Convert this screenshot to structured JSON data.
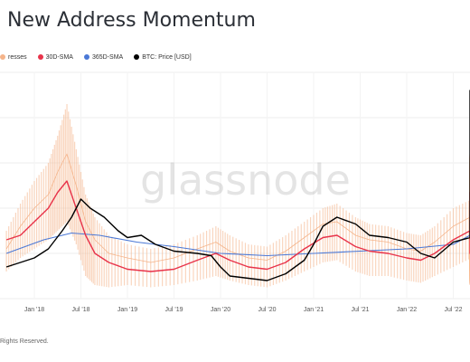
{
  "title": "New Address Momentum",
  "legend": {
    "items": [
      {
        "label": "resses",
        "color": "#f5b48a"
      },
      {
        "label": "30D-SMA",
        "color": "#e8334a"
      },
      {
        "label": "365D-SMA",
        "color": "#4a78d6"
      },
      {
        "label": "BTC: Price [USD]",
        "color": "#000000"
      }
    ]
  },
  "watermark": "glassnode",
  "footer": "Rights Reserved.",
  "chart_data": {
    "type": "line",
    "x_tick_labels": [
      "Jan '18",
      "Jul '18",
      "Jan '19",
      "Jul '19",
      "Jan '20",
      "Jul '20",
      "Jan '21",
      "Jul '21",
      "Jan '22",
      "Jul '22"
    ],
    "grid": true,
    "legend_position": "top-left",
    "series": [
      {
        "name": "BTC: Price [USD]",
        "color": "#000000",
        "points": [
          [
            -0.6,
            0.14
          ],
          [
            -0.3,
            0.16
          ],
          [
            0.0,
            0.18
          ],
          [
            0.3,
            0.22
          ],
          [
            0.6,
            0.3
          ],
          [
            0.8,
            0.36
          ],
          [
            1.0,
            0.44
          ],
          [
            1.2,
            0.4
          ],
          [
            1.5,
            0.36
          ],
          [
            1.8,
            0.3
          ],
          [
            2.0,
            0.27
          ],
          [
            2.3,
            0.28
          ],
          [
            2.6,
            0.24
          ],
          [
            3.0,
            0.21
          ],
          [
            3.5,
            0.2
          ],
          [
            3.8,
            0.19
          ],
          [
            4.0,
            0.14
          ],
          [
            4.2,
            0.1
          ],
          [
            4.6,
            0.09
          ],
          [
            5.0,
            0.08
          ],
          [
            5.4,
            0.11
          ],
          [
            5.8,
            0.17
          ],
          [
            6.0,
            0.24
          ],
          [
            6.2,
            0.32
          ],
          [
            6.5,
            0.36
          ],
          [
            6.9,
            0.33
          ],
          [
            7.2,
            0.28
          ],
          [
            7.6,
            0.27
          ],
          [
            8.0,
            0.25
          ],
          [
            8.3,
            0.2
          ],
          [
            8.6,
            0.18
          ],
          [
            9.0,
            0.25
          ],
          [
            9.4,
            0.27
          ],
          [
            9.8,
            0.3
          ],
          [
            10.2,
            0.34
          ],
          [
            10.5,
            0.4
          ],
          [
            10.8,
            0.55
          ],
          [
            11.0,
            0.62
          ],
          [
            11.2,
            0.68
          ],
          [
            11.4,
            0.74
          ],
          [
            11.7,
            0.82
          ],
          [
            12.0,
            0.88
          ],
          [
            12.3,
            0.84
          ],
          [
            12.6,
            0.86
          ],
          [
            13.0,
            0.76
          ],
          [
            13.3,
            0.7
          ],
          [
            13.6,
            0.78
          ],
          [
            14.0,
            0.82
          ],
          [
            14.3,
            0.92
          ],
          [
            14.5,
            0.89
          ],
          [
            14.8,
            0.84
          ],
          [
            15.2,
            0.8
          ],
          [
            15.6,
            0.77
          ],
          [
            16.0,
            0.7
          ],
          [
            16.3,
            0.58
          ],
          [
            16.7,
            0.55
          ],
          [
            17.0,
            0.59
          ],
          [
            17.3,
            0.56
          ]
        ]
      },
      {
        "name": "30D-SMA",
        "color": "#e8334a",
        "points": [
          [
            -0.6,
            0.26
          ],
          [
            -0.3,
            0.28
          ],
          [
            0.0,
            0.34
          ],
          [
            0.3,
            0.4
          ],
          [
            0.5,
            0.47
          ],
          [
            0.7,
            0.52
          ],
          [
            0.9,
            0.4
          ],
          [
            1.1,
            0.28
          ],
          [
            1.3,
            0.2
          ],
          [
            1.6,
            0.16
          ],
          [
            2.0,
            0.13
          ],
          [
            2.5,
            0.12
          ],
          [
            3.0,
            0.13
          ],
          [
            3.5,
            0.17
          ],
          [
            3.9,
            0.2
          ],
          [
            4.2,
            0.17
          ],
          [
            4.6,
            0.14
          ],
          [
            5.0,
            0.13
          ],
          [
            5.4,
            0.16
          ],
          [
            5.8,
            0.22
          ],
          [
            6.2,
            0.27
          ],
          [
            6.5,
            0.28
          ],
          [
            6.9,
            0.23
          ],
          [
            7.2,
            0.21
          ],
          [
            7.6,
            0.2
          ],
          [
            8.0,
            0.18
          ],
          [
            8.3,
            0.17
          ],
          [
            8.6,
            0.2
          ],
          [
            9.0,
            0.26
          ],
          [
            9.4,
            0.3
          ],
          [
            9.8,
            0.32
          ],
          [
            10.2,
            0.36
          ],
          [
            10.6,
            0.41
          ],
          [
            11.0,
            0.44
          ],
          [
            11.3,
            0.47
          ],
          [
            11.7,
            0.44
          ],
          [
            12.0,
            0.38
          ],
          [
            12.3,
            0.28
          ],
          [
            12.6,
            0.21
          ],
          [
            12.9,
            0.2
          ],
          [
            13.3,
            0.24
          ],
          [
            13.7,
            0.29
          ],
          [
            14.1,
            0.33
          ],
          [
            14.5,
            0.31
          ],
          [
            14.8,
            0.27
          ],
          [
            15.2,
            0.26
          ],
          [
            15.6,
            0.24
          ],
          [
            16.0,
            0.25
          ],
          [
            16.4,
            0.22
          ],
          [
            16.8,
            0.23
          ],
          [
            17.3,
            0.25
          ]
        ]
      },
      {
        "name": "365D-SMA",
        "color": "#4a78d6",
        "points": [
          [
            -0.6,
            0.2
          ],
          [
            0.2,
            0.26
          ],
          [
            0.8,
            0.29
          ],
          [
            1.4,
            0.28
          ],
          [
            2.2,
            0.25
          ],
          [
            3.0,
            0.23
          ],
          [
            4.0,
            0.2
          ],
          [
            5.0,
            0.19
          ],
          [
            6.0,
            0.2
          ],
          [
            7.0,
            0.21
          ],
          [
            8.0,
            0.22
          ],
          [
            9.0,
            0.24
          ],
          [
            10.0,
            0.28
          ],
          [
            11.0,
            0.35
          ],
          [
            11.7,
            0.4
          ],
          [
            12.2,
            0.38
          ],
          [
            13.0,
            0.35
          ],
          [
            14.0,
            0.33
          ],
          [
            15.0,
            0.3
          ],
          [
            16.0,
            0.27
          ],
          [
            17.3,
            0.26
          ]
        ]
      },
      {
        "name": "New Addresses",
        "color": "#f5b48a",
        "points": [
          [
            -0.6,
            0.22
          ],
          [
            -0.3,
            0.32
          ],
          [
            0.0,
            0.4
          ],
          [
            0.3,
            0.46
          ],
          [
            0.5,
            0.56
          ],
          [
            0.7,
            0.64
          ],
          [
            0.9,
            0.5
          ],
          [
            1.1,
            0.34
          ],
          [
            1.3,
            0.26
          ],
          [
            1.6,
            0.2
          ],
          [
            2.0,
            0.18
          ],
          [
            2.5,
            0.16
          ],
          [
            3.0,
            0.18
          ],
          [
            3.5,
            0.22
          ],
          [
            3.9,
            0.25
          ],
          [
            4.2,
            0.21
          ],
          [
            4.6,
            0.18
          ],
          [
            5.0,
            0.17
          ],
          [
            5.4,
            0.21
          ],
          [
            5.8,
            0.27
          ],
          [
            6.2,
            0.33
          ],
          [
            6.5,
            0.34
          ],
          [
            6.9,
            0.28
          ],
          [
            7.2,
            0.26
          ],
          [
            7.6,
            0.25
          ],
          [
            8.0,
            0.22
          ],
          [
            8.3,
            0.21
          ],
          [
            8.6,
            0.25
          ],
          [
            9.0,
            0.32
          ],
          [
            9.4,
            0.36
          ],
          [
            9.8,
            0.38
          ],
          [
            10.2,
            0.42
          ],
          [
            10.6,
            0.46
          ],
          [
            11.0,
            0.5
          ],
          [
            11.3,
            0.52
          ],
          [
            11.7,
            0.49
          ],
          [
            12.0,
            0.42
          ],
          [
            12.3,
            0.32
          ],
          [
            12.6,
            0.24
          ],
          [
            12.9,
            0.23
          ],
          [
            13.3,
            0.28
          ],
          [
            13.7,
            0.33
          ],
          [
            14.1,
            0.37
          ],
          [
            14.5,
            0.35
          ],
          [
            14.8,
            0.3
          ],
          [
            15.2,
            0.3
          ],
          [
            15.6,
            0.28
          ],
          [
            16.0,
            0.29
          ],
          [
            16.4,
            0.26
          ],
          [
            16.8,
            0.27
          ],
          [
            17.3,
            0.29
          ]
        ],
        "band": [
          [
            -0.6,
            0.12,
            0.3
          ],
          [
            -0.3,
            0.18,
            0.42
          ],
          [
            0.0,
            0.22,
            0.52
          ],
          [
            0.3,
            0.26,
            0.6
          ],
          [
            0.5,
            0.3,
            0.72
          ],
          [
            0.7,
            0.34,
            0.86
          ],
          [
            0.9,
            0.24,
            0.66
          ],
          [
            1.1,
            0.1,
            0.46
          ],
          [
            1.3,
            0.06,
            0.36
          ],
          [
            1.6,
            0.05,
            0.28
          ],
          [
            2.0,
            0.06,
            0.24
          ],
          [
            2.5,
            0.05,
            0.22
          ],
          [
            3.0,
            0.06,
            0.24
          ],
          [
            3.5,
            0.08,
            0.28
          ],
          [
            3.9,
            0.1,
            0.32
          ],
          [
            4.2,
            0.08,
            0.28
          ],
          [
            4.6,
            0.06,
            0.24
          ],
          [
            5.0,
            0.05,
            0.23
          ],
          [
            5.4,
            0.08,
            0.28
          ],
          [
            5.8,
            0.12,
            0.34
          ],
          [
            6.2,
            0.16,
            0.4
          ],
          [
            6.5,
            0.17,
            0.42
          ],
          [
            6.9,
            0.12,
            0.36
          ],
          [
            7.2,
            0.1,
            0.33
          ],
          [
            7.6,
            0.1,
            0.32
          ],
          [
            8.0,
            0.08,
            0.29
          ],
          [
            8.3,
            0.07,
            0.28
          ],
          [
            8.6,
            0.1,
            0.32
          ],
          [
            9.0,
            0.14,
            0.4
          ],
          [
            9.4,
            0.18,
            0.44
          ],
          [
            9.8,
            0.2,
            0.47
          ],
          [
            10.2,
            0.24,
            0.52
          ],
          [
            10.6,
            0.28,
            0.56
          ],
          [
            11.0,
            0.3,
            0.62
          ],
          [
            11.3,
            0.32,
            0.64
          ],
          [
            11.7,
            0.26,
            0.6
          ],
          [
            12.0,
            0.18,
            0.54
          ],
          [
            12.3,
            0.1,
            0.44
          ],
          [
            12.6,
            0.06,
            0.34
          ],
          [
            12.9,
            0.08,
            0.32
          ],
          [
            13.3,
            0.14,
            0.36
          ],
          [
            13.7,
            0.18,
            0.42
          ],
          [
            14.1,
            0.22,
            0.47
          ],
          [
            14.5,
            0.2,
            0.45
          ],
          [
            14.8,
            0.16,
            0.4
          ],
          [
            15.2,
            0.16,
            0.4
          ],
          [
            15.6,
            0.14,
            0.38
          ],
          [
            16.0,
            0.15,
            0.39
          ],
          [
            16.4,
            0.12,
            0.36
          ],
          [
            16.8,
            0.13,
            0.37
          ],
          [
            17.3,
            0.15,
            0.39
          ]
        ]
      }
    ]
  }
}
